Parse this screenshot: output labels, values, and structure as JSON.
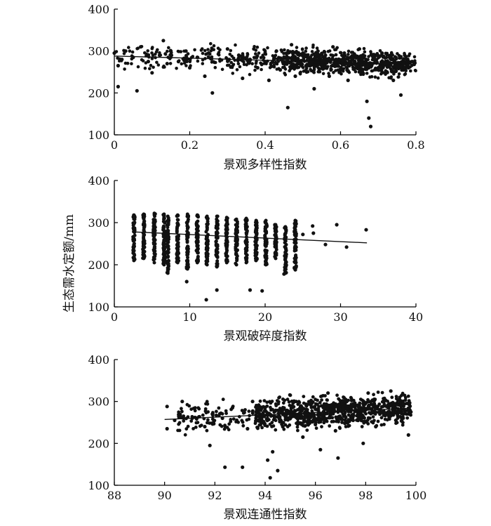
{
  "figure": {
    "ylabel": "生态需水定额/mm"
  },
  "chart_data": [
    {
      "type": "scatter",
      "xlabel": "景观多样性指数",
      "xlim": [
        0,
        0.8
      ],
      "ylim": [
        100,
        400
      ],
      "xticks": [
        "0",
        "0.2",
        "0.4",
        "0.6",
        "0.8"
      ],
      "yticks": [
        "100",
        "200",
        "300",
        "400"
      ],
      "grid": false,
      "trend": {
        "x": [
          0,
          0.8
        ],
        "y": [
          288,
          268
        ]
      },
      "points": [
        [
          0.0,
          295
        ],
        [
          0.01,
          265
        ],
        [
          0.01,
          215
        ],
        [
          0.02,
          280
        ],
        [
          0.03,
          300
        ],
        [
          0.05,
          285
        ],
        [
          0.06,
          205
        ],
        [
          0.07,
          310
        ],
        [
          0.09,
          275
        ],
        [
          0.1,
          248
        ],
        [
          0.12,
          290
        ],
        [
          0.13,
          325
        ],
        [
          0.14,
          270
        ],
        [
          0.15,
          300
        ],
        [
          0.17,
          275
        ],
        [
          0.19,
          300
        ],
        [
          0.2,
          260
        ],
        [
          0.22,
          285
        ],
        [
          0.24,
          240
        ],
        [
          0.25,
          295
        ],
        [
          0.26,
          200
        ],
        [
          0.28,
          280
        ],
        [
          0.3,
          305
        ],
        [
          0.31,
          262
        ],
        [
          0.33,
          290
        ],
        [
          0.34,
          235
        ],
        [
          0.36,
          280
        ],
        [
          0.37,
          305
        ],
        [
          0.38,
          260
        ],
        [
          0.4,
          295
        ],
        [
          0.41,
          230
        ],
        [
          0.42,
          275
        ],
        [
          0.43,
          300
        ],
        [
          0.44,
          255
        ],
        [
          0.45,
          285
        ],
        [
          0.46,
          165
        ],
        [
          0.47,
          315
        ],
        [
          0.48,
          240
        ],
        [
          0.49,
          270
        ],
        [
          0.5,
          295
        ],
        [
          0.51,
          250
        ],
        [
          0.52,
          285
        ],
        [
          0.53,
          210
        ],
        [
          0.54,
          300
        ],
        [
          0.55,
          265
        ],
        [
          0.56,
          290
        ],
        [
          0.57,
          240
        ],
        [
          0.58,
          310
        ],
        [
          0.59,
          275
        ],
        [
          0.6,
          255
        ],
        [
          0.61,
          295
        ],
        [
          0.62,
          230
        ],
        [
          0.63,
          285
        ],
        [
          0.64,
          260
        ],
        [
          0.65,
          305
        ],
        [
          0.66,
          245
        ],
        [
          0.67,
          180
        ],
        [
          0.675,
          140
        ],
        [
          0.68,
          120
        ],
        [
          0.69,
          280
        ],
        [
          0.7,
          260
        ],
        [
          0.71,
          295
        ],
        [
          0.72,
          250
        ],
        [
          0.73,
          285
        ],
        [
          0.74,
          230
        ],
        [
          0.75,
          270
        ],
        [
          0.76,
          195
        ],
        [
          0.77,
          290
        ],
        [
          0.78,
          260
        ],
        [
          0.79,
          275
        ]
      ]
    },
    {
      "type": "scatter",
      "xlabel": "景观破碎度指数",
      "xlim": [
        0,
        40
      ],
      "ylim": [
        100,
        400
      ],
      "xticks": [
        "0",
        "10",
        "20",
        "30",
        "40"
      ],
      "yticks": [
        "100",
        "200",
        "300",
        "400"
      ],
      "grid": false,
      "trend": {
        "x": [
          2.5,
          33.5
        ],
        "y": [
          278,
          252
        ]
      },
      "columns": [
        {
          "x": 2.6,
          "min": 210,
          "max": 318
        },
        {
          "x": 3.9,
          "min": 215,
          "max": 320
        },
        {
          "x": 5.3,
          "min": 205,
          "max": 322
        },
        {
          "x": 6.6,
          "min": 200,
          "max": 320
        },
        {
          "x": 7.1,
          "min": 180,
          "max": 315
        },
        {
          "x": 8.4,
          "min": 205,
          "max": 318
        },
        {
          "x": 9.7,
          "min": 190,
          "max": 320
        },
        {
          "x": 11.0,
          "min": 205,
          "max": 318
        },
        {
          "x": 12.3,
          "min": 200,
          "max": 315
        },
        {
          "x": 13.6,
          "min": 195,
          "max": 315
        },
        {
          "x": 14.9,
          "min": 205,
          "max": 312
        },
        {
          "x": 16.2,
          "min": 200,
          "max": 308
        },
        {
          "x": 17.5,
          "min": 205,
          "max": 310
        },
        {
          "x": 18.8,
          "min": 210,
          "max": 305
        },
        {
          "x": 20.1,
          "min": 200,
          "max": 305
        },
        {
          "x": 21.4,
          "min": 215,
          "max": 295
        },
        {
          "x": 22.7,
          "min": 180,
          "max": 290
        },
        {
          "x": 24.0,
          "min": 190,
          "max": 305
        }
      ],
      "points": [
        [
          9.6,
          160
        ],
        [
          12.2,
          117
        ],
        [
          13.6,
          140
        ],
        [
          18.0,
          140
        ],
        [
          19.6,
          138
        ],
        [
          25.0,
          272
        ],
        [
          26.3,
          292
        ],
        [
          26.4,
          275
        ],
        [
          28.0,
          248
        ],
        [
          29.5,
          295
        ],
        [
          30.8,
          242
        ],
        [
          33.4,
          283
        ],
        [
          22.5,
          178
        ],
        [
          24.0,
          188
        ]
      ]
    },
    {
      "type": "scatter",
      "xlabel": "景观连通性指数",
      "xlim": [
        88,
        100
      ],
      "ylim": [
        100,
        400
      ],
      "xticks": [
        "88",
        "90",
        "92",
        "94",
        "96",
        "98",
        "100"
      ],
      "yticks": [
        "100",
        "200",
        "300",
        "400"
      ],
      "grid": false,
      "trend": {
        "x": [
          90,
          99.8
        ],
        "y": [
          257,
          284
        ]
      },
      "points": [
        [
          90.1,
          288
        ],
        [
          90.1,
          235
        ],
        [
          90.4,
          255
        ],
        [
          90.7,
          300
        ],
        [
          91.1,
          260
        ],
        [
          91.6,
          240
        ],
        [
          91.8,
          195
        ],
        [
          91.9,
          270
        ],
        [
          92.3,
          260
        ],
        [
          92.4,
          143
        ],
        [
          92.7,
          285
        ],
        [
          93.1,
          143
        ],
        [
          93.3,
          235
        ],
        [
          93.5,
          300
        ],
        [
          93.8,
          270
        ],
        [
          94.1,
          160
        ],
        [
          94.2,
          118
        ],
        [
          94.3,
          180
        ],
        [
          94.5,
          135
        ],
        [
          94.7,
          240
        ],
        [
          95.0,
          315
        ],
        [
          95.3,
          265
        ],
        [
          95.5,
          215
        ],
        [
          95.8,
          300
        ],
        [
          96.0,
          245
        ],
        [
          96.2,
          185
        ],
        [
          96.5,
          320
        ],
        [
          96.8,
          230
        ],
        [
          96.9,
          165
        ],
        [
          97.2,
          305
        ],
        [
          97.5,
          255
        ],
        [
          97.9,
          200
        ],
        [
          98.1,
          320
        ],
        [
          98.4,
          240
        ],
        [
          98.7,
          300
        ],
        [
          99.0,
          325
        ],
        [
          99.2,
          255
        ],
        [
          99.5,
          295
        ],
        [
          99.7,
          220
        ],
        [
          99.8,
          275
        ]
      ]
    }
  ]
}
